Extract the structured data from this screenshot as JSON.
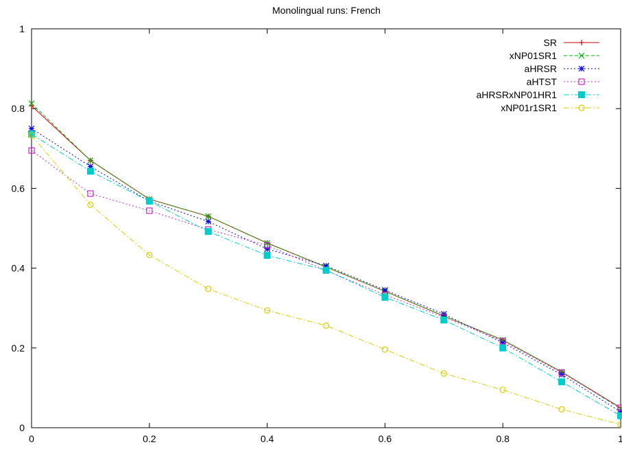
{
  "chart_data": {
    "type": "line",
    "title": "Monolingual runs: French",
    "xlabel": "",
    "ylabel": "",
    "xlim": [
      0,
      1
    ],
    "ylim": [
      0,
      1
    ],
    "x_ticks": [
      "0",
      "0.2",
      "0.4",
      "0.6",
      "0.8",
      "1"
    ],
    "y_ticks": [
      "0",
      "0.2",
      "0.4",
      "0.6",
      "0.8",
      "1"
    ],
    "grid": false,
    "legend_position": "top-right",
    "x": [
      0,
      0.1,
      0.2,
      0.3,
      0.4,
      0.5,
      0.6,
      0.7,
      0.8,
      0.9,
      1.0
    ],
    "series": [
      {
        "name": "SR",
        "color": "#cc0000",
        "dash": "solid",
        "marker": "plus",
        "values": [
          0.807,
          0.67,
          0.573,
          0.53,
          0.463,
          0.403,
          0.342,
          0.28,
          0.22,
          0.14,
          0.05
        ]
      },
      {
        "name": "xNP01SR1",
        "color": "#00b000",
        "dash": "dashed",
        "marker": "x",
        "values": [
          0.813,
          0.67,
          0.573,
          0.53,
          0.463,
          0.403,
          0.342,
          0.28,
          0.22,
          0.14,
          0.048
        ]
      },
      {
        "name": "aHRSR",
        "color": "#0000dd",
        "dash": "dotted",
        "marker": "star",
        "values": [
          0.75,
          0.655,
          0.568,
          0.517,
          0.448,
          0.406,
          0.345,
          0.285,
          0.213,
          0.133,
          0.04
        ]
      },
      {
        "name": "aHTST",
        "color": "#cc22cc",
        "dash": "dotted",
        "marker": "open-square",
        "values": [
          0.695,
          0.587,
          0.544,
          0.497,
          0.457,
          0.394,
          0.333,
          0.277,
          0.217,
          0.138,
          0.05
        ]
      },
      {
        "name": "aHRSRxNP01HR1",
        "color": "#00cccc",
        "dash": "dashdot",
        "marker": "filled-square",
        "values": [
          0.736,
          0.643,
          0.568,
          0.492,
          0.432,
          0.395,
          0.327,
          0.27,
          0.2,
          0.115,
          0.03
        ]
      },
      {
        "name": "xNP01r1SR1",
        "color": "#ddcc00",
        "dash": "dashdot",
        "marker": "open-circle",
        "values": [
          0.733,
          0.559,
          0.433,
          0.348,
          0.294,
          0.256,
          0.196,
          0.136,
          0.095,
          0.046,
          0.008
        ]
      }
    ]
  }
}
